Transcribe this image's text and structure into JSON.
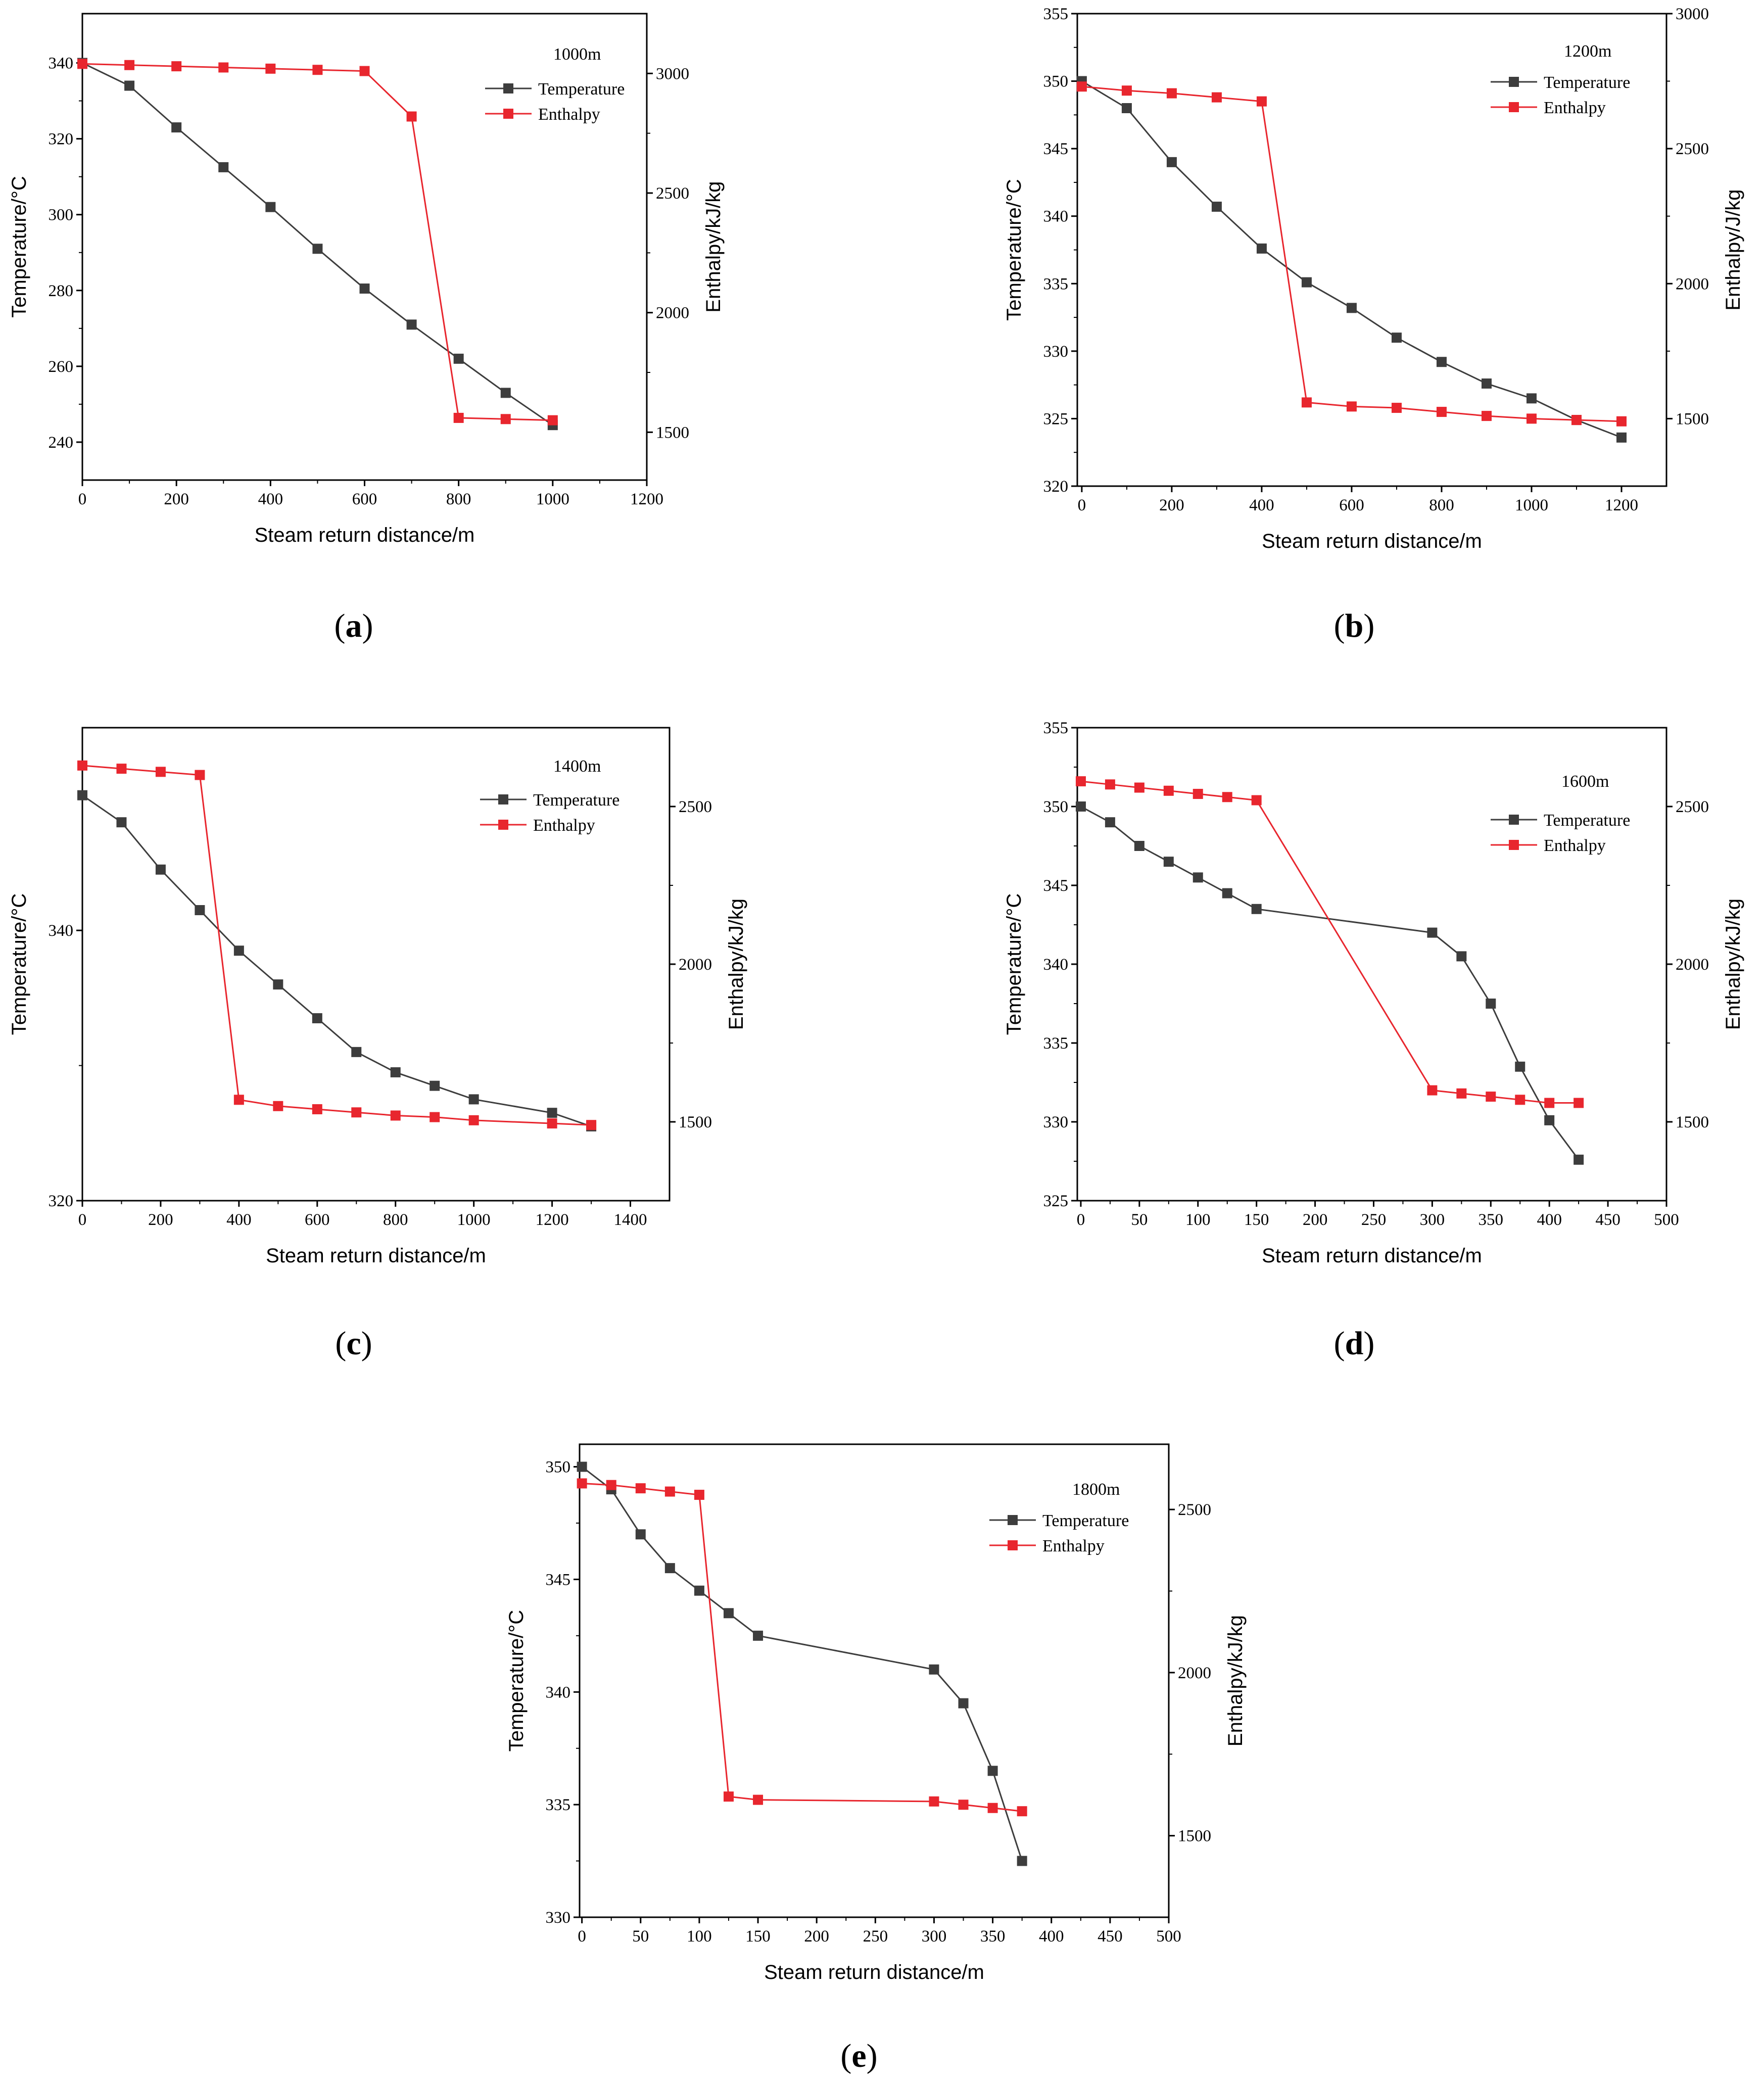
{
  "figure": {
    "caption_prefix": "(",
    "caption_suffix": ")"
  },
  "colors": {
    "temperature": "#3d3d3d",
    "enthalpy": "#e8262e",
    "axis": "#000000"
  },
  "legend": {
    "temperature": "Temperature",
    "enthalpy": "Enthalpy"
  },
  "chart_data": [
    {
      "id": "a",
      "panel_label": "a",
      "type": "line",
      "annotation": "1000m",
      "xlabel": "Steam return distance/m",
      "ylabel": "Temperature/°C",
      "y2label": "Enthalpy/kJ/kg",
      "xlim": [
        0,
        1200
      ],
      "xticks": [
        0,
        200,
        400,
        600,
        800,
        1000,
        1200
      ],
      "ylim": [
        230,
        353
      ],
      "yticks": [
        240,
        260,
        280,
        300,
        320,
        340
      ],
      "y2lim": [
        1300,
        3250
      ],
      "y2ticks": [
        1500,
        2000,
        2500,
        3000
      ],
      "series": [
        {
          "name": "Temperature",
          "axis": "left",
          "x": [
            0,
            100,
            200,
            300,
            400,
            500,
            600,
            700,
            800,
            900,
            1000
          ],
          "y": [
            340,
            334,
            323,
            312.5,
            302,
            291,
            280.5,
            271,
            262,
            253,
            244.5
          ]
        },
        {
          "name": "Enthalpy",
          "axis": "right",
          "x": [
            0,
            100,
            200,
            300,
            400,
            500,
            600,
            700,
            800,
            900,
            1000
          ],
          "y": [
            3040,
            3035,
            3030,
            3025,
            3020,
            3015,
            3010,
            2820,
            1560,
            1555,
            1550
          ]
        }
      ]
    },
    {
      "id": "b",
      "panel_label": "b",
      "type": "line",
      "annotation": "1200m",
      "xlabel": "Steam return distance/m",
      "ylabel": "Temperature/°C",
      "y2label": "Enthalpy/J/kg",
      "xlim": [
        -10,
        1300
      ],
      "xticks": [
        0,
        200,
        400,
        600,
        800,
        1000,
        1200
      ],
      "ylim": [
        320,
        355
      ],
      "yticks": [
        320,
        325,
        330,
        335,
        340,
        345,
        350,
        355
      ],
      "y2lim": [
        1250,
        3000
      ],
      "y2ticks": [
        1500,
        2000,
        2500,
        3000
      ],
      "series": [
        {
          "name": "Temperature",
          "axis": "left",
          "x": [
            0,
            100,
            200,
            300,
            400,
            500,
            600,
            700,
            800,
            900,
            1000,
            1100,
            1200
          ],
          "y": [
            350,
            348,
            344,
            340.7,
            337.6,
            335.1,
            333.2,
            331,
            329.2,
            327.6,
            326.5,
            324.9,
            323.6
          ]
        },
        {
          "name": "Enthalpy",
          "axis": "right",
          "x": [
            0,
            100,
            200,
            300,
            400,
            500,
            600,
            700,
            800,
            900,
            1000,
            1100,
            1200
          ],
          "y": [
            2730,
            2715,
            2705,
            2690,
            2675,
            1560,
            1545,
            1540,
            1525,
            1510,
            1500,
            1495,
            1490
          ]
        }
      ]
    },
    {
      "id": "c",
      "panel_label": "c",
      "type": "line",
      "annotation": "1400m",
      "xlabel": "Steam return distance/m",
      "ylabel": "Temperature/°C",
      "y2label": "Enthalpy/kJ/kg",
      "xlim": [
        0,
        1500
      ],
      "xticks": [
        0,
        200,
        400,
        600,
        800,
        1000,
        1200,
        1400
      ],
      "ylim": [
        320,
        355
      ],
      "yticks": [
        320,
        340
      ],
      "y2lim": [
        1250,
        2750
      ],
      "y2ticks": [
        1500,
        2000,
        2500
      ],
      "series": [
        {
          "name": "Temperature",
          "axis": "left",
          "x": [
            0,
            100,
            200,
            300,
            400,
            500,
            600,
            700,
            800,
            900,
            1000,
            1200,
            1300
          ],
          "y": [
            350,
            348,
            344.5,
            341.5,
            338.5,
            336,
            333.5,
            331,
            329.5,
            328.5,
            327.5,
            326.5,
            325.5
          ]
        },
        {
          "name": "Enthalpy",
          "axis": "right",
          "x": [
            0,
            100,
            200,
            300,
            400,
            500,
            600,
            700,
            800,
            900,
            1000,
            1200,
            1300
          ],
          "y": [
            2630,
            2620,
            2610,
            2600,
            1570,
            1550,
            1540,
            1530,
            1520,
            1515,
            1505,
            1495,
            1490
          ]
        }
      ]
    },
    {
      "id": "d",
      "panel_label": "d",
      "type": "line",
      "annotation": "1600m",
      "xlabel": "Steam return distance/m",
      "ylabel": "Temperature/°C",
      "y2label": "Enthalpy/kJ/kg",
      "xlim": [
        -3,
        500
      ],
      "xticks": [
        0,
        50,
        100,
        150,
        200,
        250,
        300,
        350,
        400,
        450,
        500
      ],
      "ylim": [
        325,
        355
      ],
      "yticks": [
        325,
        330,
        335,
        340,
        345,
        350,
        355
      ],
      "y2lim": [
        1250,
        2750
      ],
      "y2ticks": [
        1500,
        2000,
        2500
      ],
      "series": [
        {
          "name": "Temperature",
          "axis": "left",
          "x": [
            0,
            25,
            50,
            75,
            100,
            125,
            150,
            300,
            325,
            350,
            375,
            400,
            425
          ],
          "y": [
            350,
            349,
            347.5,
            346.5,
            345.5,
            344.5,
            343.5,
            342,
            340.5,
            337.5,
            333.5,
            330.1,
            327.6
          ]
        },
        {
          "name": "Enthalpy",
          "axis": "right",
          "x": [
            0,
            25,
            50,
            75,
            100,
            125,
            150,
            300,
            325,
            350,
            375,
            400,
            425
          ],
          "y": [
            2580,
            2570,
            2560,
            2550,
            2540,
            2530,
            2520,
            1600,
            1590,
            1580,
            1570,
            1560,
            1560
          ]
        }
      ]
    },
    {
      "id": "e",
      "panel_label": "e",
      "type": "line",
      "annotation": "1800m",
      "xlabel": "Steam return distance/m",
      "ylabel": "Temperature/°C",
      "y2label": "Enthalpy/kJ/kg",
      "xlim": [
        -2,
        500
      ],
      "xticks": [
        0,
        50,
        100,
        150,
        200,
        250,
        300,
        350,
        400,
        450,
        500
      ],
      "ylim": [
        330,
        351
      ],
      "yticks": [
        330,
        335,
        340,
        345,
        350
      ],
      "y2lim": [
        1250,
        2700
      ],
      "y2ticks": [
        1500,
        2000,
        2500
      ],
      "series": [
        {
          "name": "Temperature",
          "axis": "left",
          "x": [
            0,
            25,
            50,
            75,
            100,
            125,
            150,
            300,
            325,
            350,
            375
          ],
          "y": [
            350,
            349,
            347,
            345.5,
            344.5,
            343.5,
            342.5,
            341,
            339.5,
            336.5,
            332.5
          ]
        },
        {
          "name": "Enthalpy",
          "axis": "right",
          "x": [
            0,
            25,
            50,
            75,
            100,
            125,
            150,
            300,
            325,
            350,
            375
          ],
          "y": [
            2580,
            2575,
            2565,
            2555,
            2545,
            1620,
            1610,
            1605,
            1595,
            1585,
            1575
          ]
        }
      ]
    }
  ]
}
